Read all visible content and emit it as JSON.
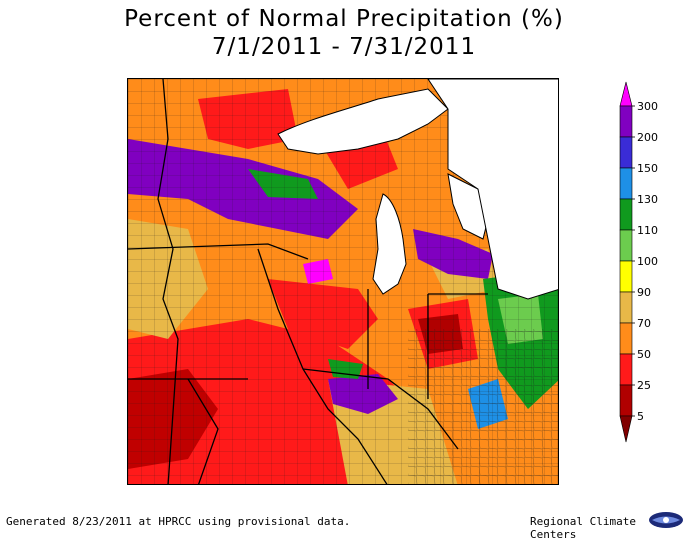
{
  "title": {
    "line1": "Percent of Normal Precipitation (%)",
    "line2": "7/1/2011 - 7/31/2011"
  },
  "legend": {
    "labels": [
      "300",
      "200",
      "150",
      "130",
      "110",
      "100",
      "90",
      "70",
      "50",
      "25",
      "5"
    ],
    "colors": [
      "#ff00ff",
      "#8000c0",
      "#3a2cd6",
      "#1e90e6",
      "#109a1e",
      "#6ccc4e",
      "#ffff00",
      "#e8b848",
      "#ff8c1a",
      "#ff1a1a",
      "#b00000",
      "#800000"
    ]
  },
  "map": {
    "lake_color": "#ffffff",
    "state_line_color": "#000000",
    "county_line_color": "#202020"
  },
  "footer": {
    "left": "Generated 8/23/2011 at HPRCC using provisional data.",
    "right": "Regional Climate Centers"
  }
}
